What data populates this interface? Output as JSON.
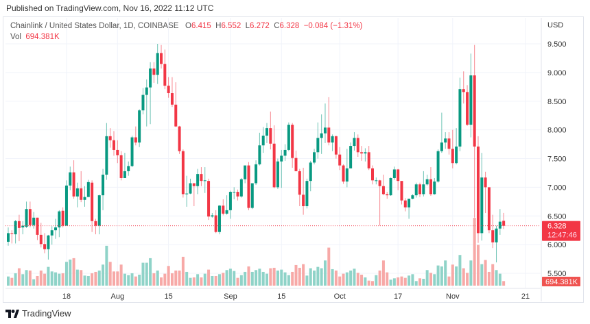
{
  "published": "Published on TradingView.com, Nov 16, 2022 11:12 UTC",
  "legend": {
    "symbol": "Chainlink / United States Dollar, 1D, COINBASE",
    "o_label": "O",
    "o": "6.415",
    "h_label": "H",
    "h": "6.552",
    "l_label": "L",
    "l": "6.272",
    "c_label": "C",
    "c": "6.328",
    "change": "−0.084 (−1.31%)",
    "vol_label": "Vol",
    "vol": "694.381K"
  },
  "price_axis": {
    "currency": "USD",
    "ticks": [
      "9.500",
      "9.000",
      "8.500",
      "8.000",
      "7.500",
      "7.000",
      "6.500",
      "6.000",
      "5.500"
    ]
  },
  "last_price_badge": {
    "price": "6.328",
    "countdown": "12:47:46"
  },
  "volume_badge": "694.381K",
  "time_axis": {
    "ticks": [
      {
        "label": "18",
        "index": 16
      },
      {
        "label": "Aug",
        "index": 30
      },
      {
        "label": "15",
        "index": 44
      },
      {
        "label": "Sep",
        "index": 61
      },
      {
        "label": "15",
        "index": 75
      },
      {
        "label": "Oct",
        "index": 91
      },
      {
        "label": "17",
        "index": 107
      },
      {
        "label": "Nov",
        "index": 122
      },
      {
        "label": "21",
        "index": 142
      }
    ]
  },
  "footer": {
    "brand": "TradingView"
  },
  "colors": {
    "up": "#089981",
    "down": "#f23645",
    "up_vol": "#8fd3c8",
    "down_vol": "#f7a9a7",
    "grid": "#f0f3fa"
  },
  "chart_data": {
    "type": "candlestick",
    "title": "Chainlink / United States Dollar, 1D, COINBASE",
    "ylim": [
      5.4,
      9.6
    ],
    "last_price": 6.328,
    "ohlc": [
      [
        6.05,
        6.3,
        5.98,
        6.2
      ],
      [
        6.2,
        6.25,
        6.02,
        6.19
      ],
      [
        6.18,
        6.43,
        6.02,
        6.41
      ],
      [
        6.41,
        6.52,
        6.06,
        6.29
      ],
      [
        6.3,
        6.41,
        6.18,
        6.33
      ],
      [
        6.31,
        6.75,
        6.29,
        6.62
      ],
      [
        6.62,
        6.75,
        6.3,
        6.34
      ],
      [
        6.34,
        6.57,
        6.28,
        6.47
      ],
      [
        6.47,
        6.47,
        6.08,
        6.17
      ],
      [
        6.17,
        6.38,
        5.95,
        6.01
      ],
      [
        6.01,
        6.2,
        5.85,
        5.92
      ],
      [
        5.92,
        6.17,
        5.74,
        6.16
      ],
      [
        6.16,
        6.32,
        6.0,
        6.25
      ],
      [
        6.25,
        6.45,
        6.1,
        6.3
      ],
      [
        6.3,
        6.6,
        6.13,
        6.58
      ],
      [
        6.59,
        6.65,
        6.3,
        6.33
      ],
      [
        6.33,
        7.12,
        6.33,
        7.03
      ],
      [
        7.03,
        7.36,
        6.95,
        7.26
      ],
      [
        7.26,
        7.47,
        6.8,
        6.84
      ],
      [
        6.84,
        7.08,
        6.65,
        6.98
      ],
      [
        6.98,
        7.28,
        6.74,
        6.78
      ],
      [
        6.78,
        7.02,
        6.66,
        6.83
      ],
      [
        6.83,
        7.13,
        6.85,
        7.09
      ],
      [
        7.08,
        7.12,
        6.22,
        6.41
      ],
      [
        6.41,
        6.45,
        6.18,
        6.33
      ],
      [
        6.33,
        6.87,
        6.18,
        6.86
      ],
      [
        6.86,
        7.32,
        6.6,
        7.22
      ],
      [
        7.22,
        8.12,
        7.13,
        7.89
      ],
      [
        7.89,
        8.03,
        7.69,
        7.82
      ],
      [
        7.82,
        7.98,
        7.55,
        7.65
      ],
      [
        7.65,
        7.82,
        7.42,
        7.56
      ],
      [
        7.56,
        7.63,
        7.12,
        7.16
      ],
      [
        7.16,
        7.6,
        7.18,
        7.28
      ],
      [
        7.28,
        7.45,
        7.2,
        7.37
      ],
      [
        7.37,
        7.9,
        7.35,
        7.87
      ],
      [
        7.87,
        8.06,
        7.73,
        7.78
      ],
      [
        7.78,
        8.36,
        7.7,
        8.34
      ],
      [
        8.34,
        8.73,
        8.27,
        8.61
      ],
      [
        8.61,
        8.88,
        8.06,
        8.74
      ],
      [
        8.74,
        9.18,
        8.1,
        9.07
      ],
      [
        9.07,
        9.18,
        8.82,
        8.96
      ],
      [
        8.96,
        9.5,
        8.8,
        9.34
      ],
      [
        9.34,
        9.48,
        9.07,
        9.15
      ],
      [
        9.15,
        9.4,
        8.71,
        8.77
      ],
      [
        8.77,
        8.92,
        8.56,
        8.64
      ],
      [
        8.64,
        8.92,
        8.4,
        8.44
      ],
      [
        8.44,
        8.83,
        8.05,
        8.06
      ],
      [
        8.06,
        8.07,
        7.58,
        7.63
      ],
      [
        7.63,
        7.66,
        6.82,
        6.88
      ],
      [
        6.88,
        7.2,
        6.66,
        6.89
      ],
      [
        6.89,
        7.15,
        6.88,
        7.07
      ],
      [
        7.07,
        7.07,
        6.67,
        7.02
      ],
      [
        7.02,
        7.32,
        6.88,
        7.23
      ],
      [
        7.23,
        7.35,
        7.02,
        7.11
      ],
      [
        7.11,
        7.35,
        6.9,
        7.12
      ],
      [
        7.11,
        7.15,
        6.43,
        6.49
      ],
      [
        6.49,
        6.55,
        6.47,
        6.51
      ],
      [
        6.51,
        6.6,
        6.2,
        6.22
      ],
      [
        6.22,
        6.69,
        6.18,
        6.68
      ],
      [
        6.68,
        6.79,
        6.51,
        6.54
      ],
      [
        6.54,
        6.86,
        6.52,
        6.6
      ],
      [
        6.6,
        6.94,
        6.45,
        6.92
      ],
      [
        6.92,
        7.0,
        6.79,
        6.92
      ],
      [
        6.92,
        6.96,
        6.77,
        6.84
      ],
      [
        6.84,
        7.16,
        6.82,
        7.14
      ],
      [
        7.14,
        7.38,
        7.07,
        7.38
      ],
      [
        7.38,
        7.44,
        6.6,
        6.64
      ],
      [
        6.64,
        7.07,
        6.62,
        7.07
      ],
      [
        7.07,
        7.47,
        7.04,
        7.4
      ],
      [
        7.4,
        7.95,
        7.38,
        7.73
      ],
      [
        7.73,
        8.05,
        7.6,
        7.9
      ],
      [
        7.9,
        8.12,
        7.77,
        8.03
      ],
      [
        8.03,
        8.32,
        7.66,
        7.76
      ],
      [
        7.76,
        8.08,
        6.98,
        7.0
      ],
      [
        7.0,
        7.5,
        6.97,
        7.45
      ],
      [
        7.45,
        7.65,
        6.99,
        7.55
      ],
      [
        7.55,
        7.75,
        7.46,
        7.65
      ],
      [
        7.65,
        8.13,
        7.63,
        8.09
      ],
      [
        8.09,
        8.12,
        7.34,
        7.51
      ],
      [
        7.51,
        7.64,
        7.28,
        7.28
      ],
      [
        7.28,
        7.32,
        6.67,
        6.87
      ],
      [
        6.87,
        7.34,
        6.52,
        6.67
      ],
      [
        6.67,
        7.15,
        6.63,
        7.11
      ],
      [
        7.11,
        7.46,
        6.93,
        7.43
      ],
      [
        7.43,
        7.67,
        7.4,
        7.61
      ],
      [
        7.61,
        8.13,
        7.5,
        7.86
      ],
      [
        7.86,
        8.27,
        7.58,
        7.94
      ],
      [
        7.94,
        8.46,
        7.77,
        8.04
      ],
      [
        8.04,
        8.57,
        7.73,
        7.78
      ],
      [
        7.78,
        7.92,
        7.63,
        7.89
      ],
      [
        7.89,
        7.9,
        7.5,
        7.57
      ],
      [
        7.57,
        7.7,
        7.3,
        7.38
      ],
      [
        7.38,
        7.4,
        7.06,
        7.1
      ],
      [
        7.1,
        7.67,
        7.0,
        7.33
      ],
      [
        7.33,
        7.78,
        7.33,
        7.72
      ],
      [
        7.72,
        7.96,
        7.64,
        7.86
      ],
      [
        7.86,
        7.92,
        7.53,
        7.61
      ],
      [
        7.61,
        7.72,
        7.46,
        7.59
      ],
      [
        7.59,
        7.68,
        7.45,
        7.61
      ],
      [
        7.61,
        7.72,
        7.3,
        7.33
      ],
      [
        7.33,
        7.38,
        7.05,
        7.12
      ],
      [
        7.12,
        7.17,
        7.05,
        7.12
      ],
      [
        7.12,
        7.13,
        6.33,
        7.02
      ],
      [
        7.02,
        7.22,
        6.86,
        6.88
      ],
      [
        6.88,
        6.92,
        6.8,
        6.86
      ],
      [
        6.86,
        7.17,
        6.85,
        7.16
      ],
      [
        7.16,
        7.36,
        7.13,
        7.31
      ],
      [
        7.31,
        7.32,
        6.95,
        7.11
      ],
      [
        7.11,
        7.1,
        6.7,
        6.77
      ],
      [
        6.77,
        6.81,
        6.58,
        6.65
      ],
      [
        6.65,
        6.8,
        6.45,
        6.8
      ],
      [
        6.8,
        6.88,
        6.79,
        6.86
      ],
      [
        6.86,
        7.08,
        6.82,
        7.05
      ],
      [
        7.05,
        7.08,
        6.83,
        6.88
      ],
      [
        6.88,
        7.28,
        6.84,
        7.05
      ],
      [
        7.05,
        7.22,
        7.03,
        7.14
      ],
      [
        7.14,
        7.35,
        6.85,
        6.88
      ],
      [
        6.88,
        7.16,
        6.87,
        7.1
      ],
      [
        7.1,
        7.66,
        7.08,
        7.63
      ],
      [
        7.63,
        8.3,
        7.6,
        7.78
      ],
      [
        7.78,
        7.96,
        7.67,
        7.85
      ],
      [
        7.85,
        7.96,
        7.57,
        7.67
      ],
      [
        7.67,
        8.0,
        7.33,
        7.42
      ],
      [
        7.42,
        8.03,
        7.4,
        7.71
      ],
      [
        7.71,
        8.91,
        7.63,
        8.71
      ],
      [
        8.71,
        9.02,
        8.46,
        8.66
      ],
      [
        8.66,
        8.78,
        8.07,
        8.09
      ],
      [
        8.09,
        9.33,
        7.87,
        8.95
      ],
      [
        8.95,
        9.48,
        6.47,
        7.71
      ],
      [
        7.71,
        7.89,
        6.03,
        6.2
      ],
      [
        6.2,
        7.6,
        6.07,
        7.17
      ],
      [
        7.17,
        7.27,
        6.55,
        7.0
      ],
      [
        7.0,
        7.0,
        6.2,
        6.25
      ],
      [
        6.25,
        6.52,
        5.94,
        6.04
      ],
      [
        6.04,
        6.33,
        5.69,
        6.28
      ],
      [
        6.28,
        6.62,
        6.17,
        6.4
      ],
      [
        6.415,
        6.552,
        6.272,
        6.328
      ]
    ],
    "volume_k": [
      1388,
      1180,
      1874,
      2637,
      1735,
      2360,
      2290,
      972,
      1457,
      2290,
      1804,
      2845,
      2151,
      2013,
      1804,
      1874,
      3609,
      3956,
      4164,
      2429,
      2360,
      1527,
      1457,
      1874,
      2082,
      2290,
      3192,
      6038,
      3609,
      2151,
      2151,
      3192,
      1804,
      1596,
      1874,
      1388,
      1666,
      3470,
      3470,
      4164,
      1874,
      2290,
      1249,
      1804,
      2984,
      1874,
      2290,
      2290,
      4372,
      2082,
      1180,
      1249,
      1735,
      1249,
      1804,
      2429,
      1457,
      1457,
      1735,
      1943,
      2360,
      2568,
      2221,
      1180,
      1596,
      2082,
      2915,
      2082,
      2360,
      2568,
      2082,
      1804,
      2637,
      2707,
      2290,
      2429,
      2013,
      1596,
      2082,
      3123,
      2707,
      3262,
      1527,
      2637,
      2290,
      2845,
      2637,
      3817,
      5760,
      2498,
      2290,
      1388,
      1804,
      2013,
      2290,
      2568,
      1943,
      1666,
      1249,
      763,
      694,
      1596,
      2290,
      3817,
      2013,
      902,
      1110,
      1249,
      1388,
      1180,
      1527,
      1735,
      694,
      1110,
      1041,
      2360,
      1943,
      1735,
      3054,
      2915,
      3817,
      1388,
      3192,
      2915,
      4650,
      2637,
      1943,
      3817,
      10271,
      6177,
      3262,
      3886,
      2082,
      3262,
      2360,
      1804,
      694.381
    ]
  }
}
